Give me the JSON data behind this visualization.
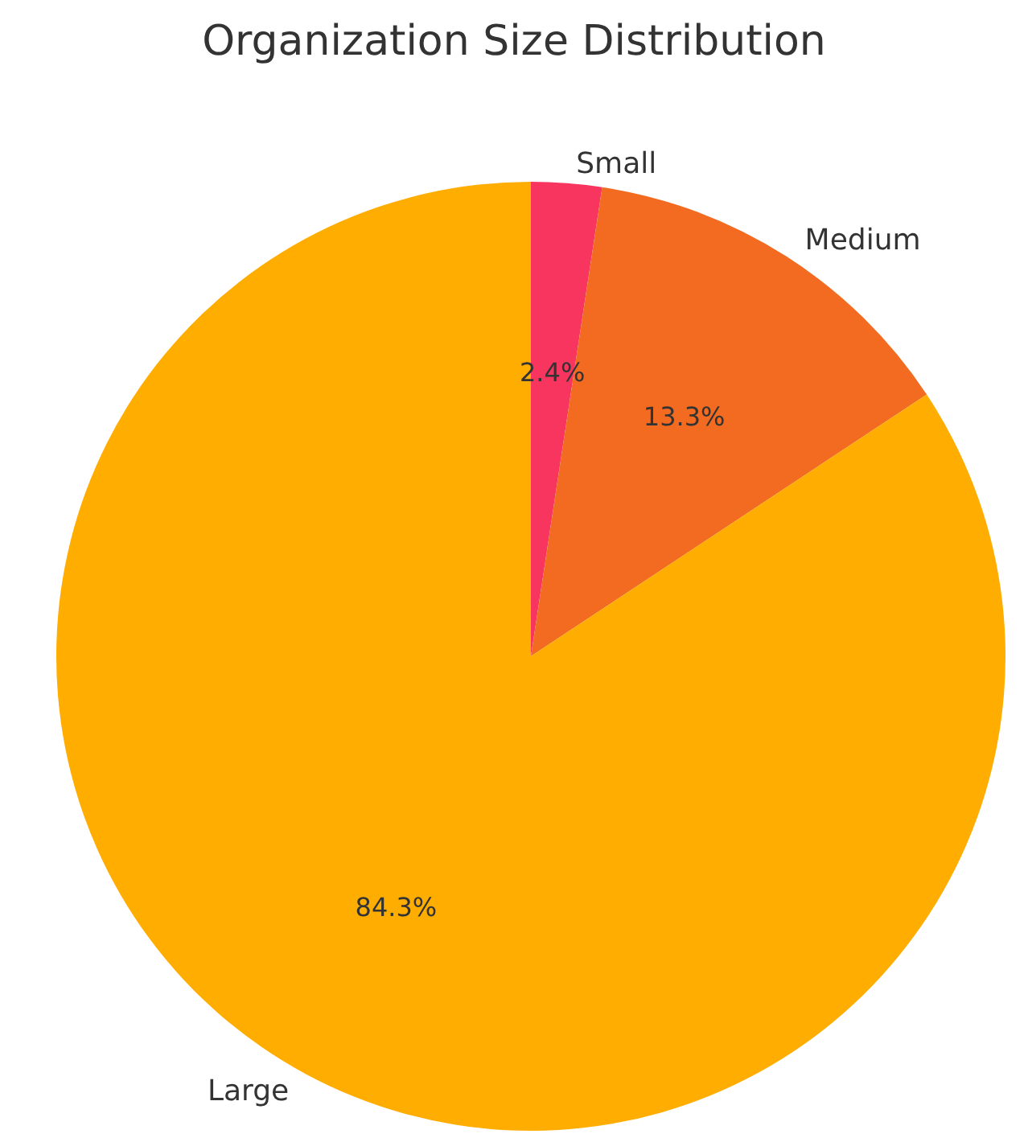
{
  "chart_data": {
    "type": "pie",
    "title": "Organization Size Distribution",
    "categories": [
      "Small",
      "Medium",
      "Large"
    ],
    "values": [
      2.4,
      13.3,
      84.3
    ],
    "colors": [
      "#f7355e",
      "#f26b21",
      "#ffad00"
    ],
    "value_labels": [
      "2.4%",
      "13.3%",
      "84.3%"
    ]
  }
}
